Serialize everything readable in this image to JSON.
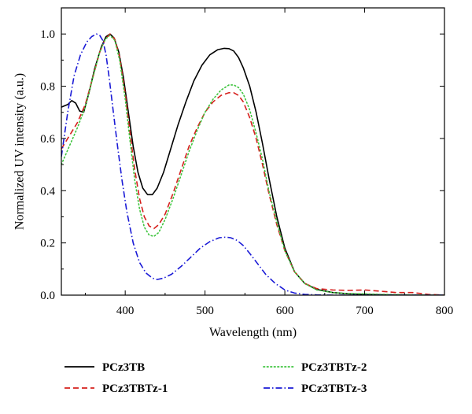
{
  "chart_data": {
    "type": "line",
    "title": "",
    "xlabel": "Wavelength (nm)",
    "ylabel": "Normalized UV intensity (a.u.)",
    "xlim": [
      320,
      800
    ],
    "ylim": [
      0,
      1.1
    ],
    "xticks": [
      400,
      500,
      600,
      700,
      800
    ],
    "yticks": [
      0.0,
      0.2,
      0.4,
      0.6,
      0.8,
      1.0
    ],
    "xtick_labels": [
      "400",
      "500",
      "600",
      "700",
      "800"
    ],
    "ytick_labels": [
      "0.0",
      "0.2",
      "0.4",
      "0.6",
      "0.8",
      "1.0"
    ],
    "grid": false,
    "legend_position": "below",
    "series": [
      {
        "name": "PCz3TB",
        "color": "#000000",
        "dash": "solid",
        "x": [
          320,
          328,
          333,
          338,
          343,
          348,
          355,
          362,
          370,
          376,
          381,
          386,
          392,
          398,
          404,
          410,
          416,
          422,
          428,
          434,
          440,
          448,
          456,
          466,
          476,
          486,
          496,
          506,
          516,
          524,
          530,
          536,
          542,
          548,
          556,
          564,
          572,
          580,
          590,
          600,
          612,
          625,
          640,
          660,
          680,
          700,
          730,
          760,
          800
        ],
        "y": [
          0.72,
          0.73,
          0.745,
          0.735,
          0.705,
          0.7,
          0.78,
          0.87,
          0.95,
          0.99,
          1.0,
          0.985,
          0.93,
          0.83,
          0.7,
          0.57,
          0.47,
          0.41,
          0.385,
          0.385,
          0.41,
          0.47,
          0.55,
          0.65,
          0.74,
          0.82,
          0.88,
          0.92,
          0.94,
          0.945,
          0.944,
          0.935,
          0.91,
          0.87,
          0.8,
          0.7,
          0.58,
          0.45,
          0.3,
          0.18,
          0.09,
          0.045,
          0.022,
          0.01,
          0.005,
          0.003,
          0.001,
          0.0,
          0.0
        ]
      },
      {
        "name": "PCz3TBTz-1",
        "color": "#d6201d",
        "dash": "dashed",
        "x": [
          320,
          330,
          340,
          350,
          360,
          368,
          375,
          381,
          387,
          393,
          400,
          406,
          412,
          418,
          424,
          430,
          436,
          442,
          450,
          460,
          470,
          480,
          490,
          500,
          510,
          520,
          530,
          536,
          542,
          548,
          556,
          564,
          572,
          580,
          590,
          600,
          612,
          625,
          640,
          660,
          680,
          700,
          720,
          740,
          760,
          780,
          800
        ],
        "y": [
          0.56,
          0.61,
          0.66,
          0.73,
          0.84,
          0.93,
          0.98,
          1.0,
          0.98,
          0.91,
          0.77,
          0.62,
          0.48,
          0.37,
          0.3,
          0.265,
          0.255,
          0.27,
          0.31,
          0.39,
          0.48,
          0.57,
          0.64,
          0.7,
          0.74,
          0.765,
          0.775,
          0.775,
          0.765,
          0.74,
          0.68,
          0.6,
          0.5,
          0.39,
          0.27,
          0.17,
          0.09,
          0.045,
          0.025,
          0.02,
          0.018,
          0.02,
          0.015,
          0.01,
          0.01,
          0.003,
          0.0
        ]
      },
      {
        "name": "PCz3TBTz-2",
        "color": "#3ec43e",
        "dash": "dotted",
        "x": [
          320,
          330,
          340,
          350,
          360,
          368,
          375,
          381,
          387,
          393,
          400,
          406,
          412,
          418,
          424,
          430,
          436,
          442,
          450,
          460,
          470,
          480,
          490,
          500,
          510,
          520,
          530,
          536,
          542,
          548,
          556,
          564,
          572,
          580,
          590,
          600,
          612,
          625,
          640,
          660,
          680,
          700,
          720,
          740,
          760,
          800
        ],
        "y": [
          0.5,
          0.57,
          0.64,
          0.72,
          0.84,
          0.93,
          0.98,
          0.995,
          0.975,
          0.9,
          0.75,
          0.59,
          0.44,
          0.33,
          0.26,
          0.23,
          0.225,
          0.24,
          0.29,
          0.37,
          0.46,
          0.55,
          0.63,
          0.7,
          0.75,
          0.785,
          0.805,
          0.805,
          0.795,
          0.77,
          0.71,
          0.62,
          0.52,
          0.4,
          0.28,
          0.17,
          0.09,
          0.045,
          0.02,
          0.01,
          0.006,
          0.005,
          0.003,
          0.002,
          0.001,
          0.0
        ]
      },
      {
        "name": "PCz3TBTz-3",
        "color": "#1a1ad6",
        "dash": "dashdot",
        "x": [
          320,
          328,
          336,
          344,
          352,
          358,
          364,
          368,
          372,
          376,
          380,
          384,
          390,
          396,
          402,
          410,
          418,
          426,
          434,
          440,
          448,
          458,
          470,
          482,
          494,
          506,
          518,
          526,
          532,
          540,
          548,
          556,
          566,
          576,
          588,
          600,
          612,
          625,
          640,
          660,
          700,
          760,
          800
        ],
        "y": [
          0.53,
          0.7,
          0.84,
          0.92,
          0.97,
          0.99,
          1.0,
          0.995,
          0.975,
          0.92,
          0.83,
          0.73,
          0.58,
          0.44,
          0.32,
          0.2,
          0.125,
          0.085,
          0.065,
          0.06,
          0.065,
          0.08,
          0.11,
          0.145,
          0.18,
          0.205,
          0.22,
          0.222,
          0.22,
          0.21,
          0.19,
          0.16,
          0.12,
          0.08,
          0.045,
          0.02,
          0.008,
          0.003,
          0.001,
          0.0,
          0.0,
          0.0,
          0.0
        ]
      }
    ]
  }
}
